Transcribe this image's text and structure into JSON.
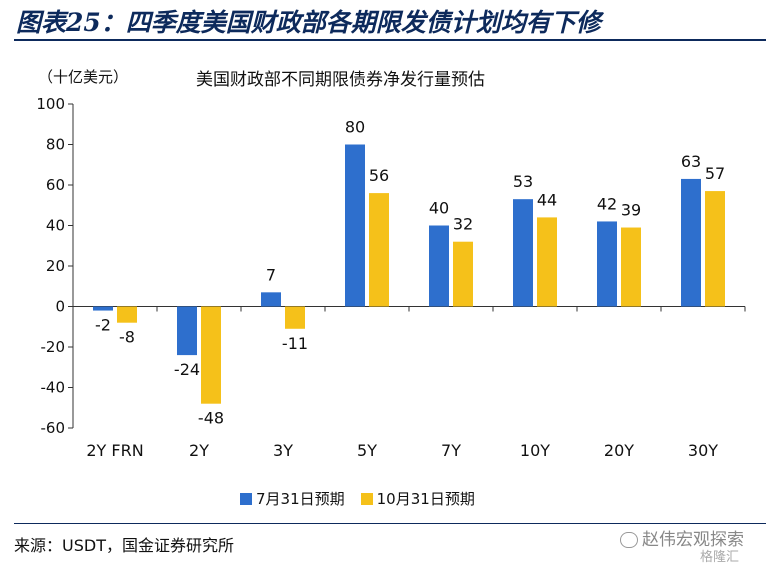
{
  "header": {
    "title": "图表25：四季度美国财政部各期限发债计划均有下修"
  },
  "source": "来源：USDT，国金证券研究所",
  "brand": "赵伟宏观探索",
  "watermark": "格隆汇",
  "colors": {
    "series1": "#2e6fcd",
    "series2": "#f5c11a",
    "title": "#0d2a5c"
  },
  "chart_data": {
    "type": "bar",
    "title": "美国财政部不同期限债券净发行量预估",
    "unit_label": "（十亿美元）",
    "categories": [
      "2Y FRN",
      "2Y",
      "3Y",
      "5Y",
      "7Y",
      "10Y",
      "20Y",
      "30Y"
    ],
    "series": [
      {
        "name": "7月31日预期",
        "values": [
          -2,
          -24,
          7,
          80,
          40,
          53,
          42,
          63
        ]
      },
      {
        "name": "10月31日预期",
        "values": [
          -8,
          -48,
          -11,
          56,
          32,
          44,
          39,
          57
        ]
      }
    ],
    "ylim": [
      -60,
      100
    ],
    "yticks": [
      -60,
      -40,
      -20,
      0,
      20,
      40,
      60,
      80,
      100
    ],
    "xlabel": "",
    "ylabel": "",
    "grid": false,
    "legend_position": "bottom"
  }
}
